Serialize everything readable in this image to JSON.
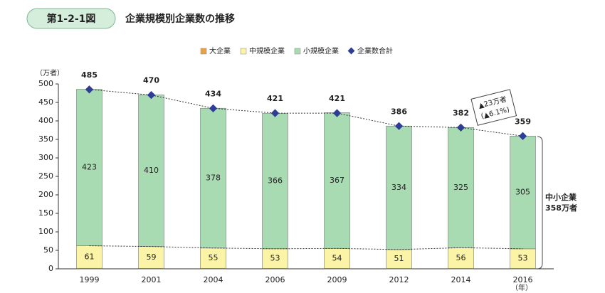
{
  "figure_label": "第1-2-1図",
  "chart_data": {
    "type": "bar",
    "stacked": true,
    "title": "企業規模別企業数の推移",
    "y_label": "（万者）",
    "x_label": "（年）",
    "categories": [
      "1999",
      "2001",
      "2004",
      "2006",
      "2009",
      "2012",
      "2014",
      "2016"
    ],
    "series": [
      {
        "name": "大企業",
        "color": "#e9a24a",
        "values": [
          1.4,
          1.3,
          1.2,
          1.2,
          1.2,
          1.1,
          1.1,
          1.1
        ]
      },
      {
        "name": "中規模企業",
        "color": "#fbf3a6",
        "values": [
          61,
          59,
          55,
          53,
          54,
          51,
          56,
          53
        ]
      },
      {
        "name": "小規模企業",
        "color": "#a9dbb3",
        "values": [
          423,
          410,
          378,
          366,
          367,
          334,
          325,
          305
        ]
      },
      {
        "name": "企業数合計",
        "color": "#2f3e95",
        "type": "line",
        "values": [
          485,
          470,
          434,
          421,
          421,
          386,
          382,
          359
        ]
      }
    ],
    "ylim": [
      0,
      500
    ],
    "yticks": [
      0,
      50,
      100,
      150,
      200,
      250,
      300,
      350,
      400,
      450,
      500
    ],
    "legend": "top",
    "annotations": {
      "change": [
        "▲23万者",
        "(▲6.1%)"
      ],
      "sme": [
        "中小企業",
        "358万者"
      ]
    }
  }
}
